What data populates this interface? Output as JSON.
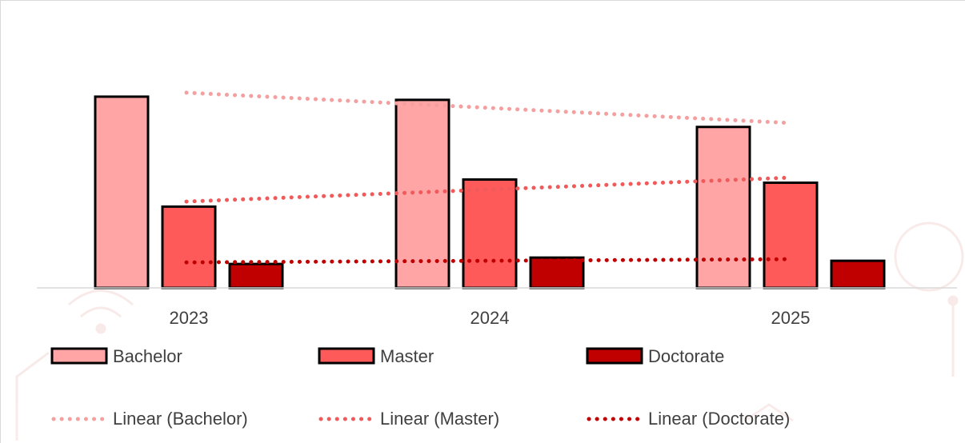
{
  "chart_data": {
    "type": "bar",
    "categories": [
      "2023",
      "2024",
      "2025"
    ],
    "series": [
      {
        "name": "Bachelor",
        "values": [
          240,
          236,
          202
        ],
        "color": "#ffa5a5"
      },
      {
        "name": "Master",
        "values": [
          102,
          136,
          132
        ],
        "color": "#ff5a5a"
      },
      {
        "name": "Doctorate",
        "values": [
          30,
          38,
          34
        ],
        "color": "#c00000"
      }
    ],
    "trendlines": [
      {
        "name": "Linear (Bachelor)",
        "series": "Bachelor",
        "color": "#f4a0a0"
      },
      {
        "name": "Linear (Master)",
        "series": "Master",
        "color": "#f05a5a"
      },
      {
        "name": "Linear (Doctorate)",
        "series": "Doctorate",
        "color": "#c00000"
      }
    ],
    "title": "",
    "xlabel": "",
    "ylabel": "",
    "ylim": [
      0,
      270
    ],
    "grid": false,
    "legend": "bottom"
  }
}
